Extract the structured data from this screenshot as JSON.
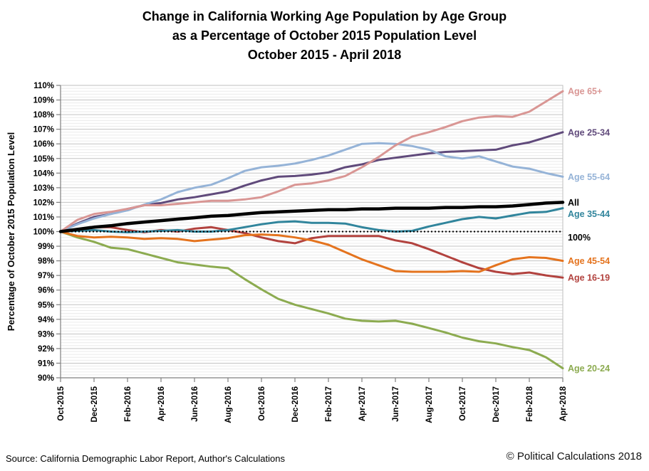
{
  "title": {
    "line1": "Change in California Working Age Population by Age Group",
    "line2": "as a Percentage of October 2015 Population Level",
    "line3": "October 2015 - April 2018"
  },
  "footer": {
    "source": "Source: California Demographic Labor Report, Author's Calculations",
    "copyright": "© Political Calculations 2018"
  },
  "y_axis": {
    "title": "Percentage of October 2015 Population Level",
    "min": 90,
    "max": 110,
    "major_step": 1,
    "minor_step": 0.2,
    "tick_suffix": "%"
  },
  "reference_line": {
    "value": 100,
    "label": "100%",
    "color": "#000000",
    "style": "dotted"
  },
  "colors": {
    "axis": "#7f7f7f",
    "major_grid": "#c3c3c3",
    "minor_grid": "#ebebeb",
    "plot_border": "#bfbfbf"
  },
  "chart_data": {
    "type": "line",
    "title": "Change in California Working Age Population by Age Group as a Percentage of October 2015 Population Level, October 2015 - April 2018",
    "xlabel": "",
    "ylabel": "Percentage of October 2015 Population Level",
    "ylim": [
      90,
      110
    ],
    "grid": "horizontal major+minor",
    "legend_position": "end-of-line labels, right of plot",
    "x": [
      "Oct-2015",
      "Nov-2015",
      "Dec-2015",
      "Jan-2016",
      "Feb-2016",
      "Mar-2016",
      "Apr-2016",
      "May-2016",
      "Jun-2016",
      "Jul-2016",
      "Aug-2016",
      "Sep-2016",
      "Oct-2016",
      "Nov-2016",
      "Dec-2016",
      "Jan-2017",
      "Feb-2017",
      "Mar-2017",
      "Apr-2017",
      "May-2017",
      "Jun-2017",
      "Jul-2017",
      "Aug-2017",
      "Sep-2017",
      "Oct-2017",
      "Nov-2017",
      "Dec-2017",
      "Jan-2018",
      "Feb-2018",
      "Mar-2018",
      "Apr-2018"
    ],
    "x_tick_every": 2,
    "series": [
      {
        "id": "age-16-19",
        "name": "Age 16-19",
        "color": "#b2423e",
        "width": 3,
        "values": [
          100,
          100.15,
          100.3,
          100.3,
          100.1,
          99.95,
          100.1,
          100,
          100.2,
          100.3,
          100.1,
          99.9,
          99.6,
          99.35,
          99.2,
          99.55,
          99.7,
          99.7,
          99.7,
          99.7,
          99.4,
          99.2,
          98.8,
          98.35,
          97.9,
          97.5,
          97.25,
          97.1,
          97.2,
          97,
          96.85
        ]
      },
      {
        "id": "age-20-24",
        "name": "Age 20-24",
        "color": "#8cab50",
        "width": 3,
        "values": [
          100,
          99.6,
          99.3,
          98.9,
          98.8,
          98.5,
          98.2,
          97.9,
          97.75,
          97.6,
          97.5,
          96.75,
          96.05,
          95.4,
          95,
          94.7,
          94.4,
          94.05,
          93.9,
          93.85,
          93.9,
          93.7,
          93.4,
          93.1,
          92.75,
          92.5,
          92.35,
          92.1,
          91.9,
          91.4,
          90.65
        ]
      },
      {
        "id": "age-25-34",
        "name": "Age 25-34",
        "color": "#604a7b",
        "width": 3,
        "values": [
          100,
          100.55,
          101,
          101.2,
          101.55,
          101.8,
          101.95,
          102.2,
          102.35,
          102.55,
          102.75,
          103.15,
          103.5,
          103.75,
          103.8,
          103.9,
          104.05,
          104.4,
          104.6,
          104.9,
          105.05,
          105.2,
          105.35,
          105.45,
          105.5,
          105.55,
          105.6,
          105.9,
          106.1,
          106.45,
          106.8
        ]
      },
      {
        "id": "age-35-44",
        "name": "Age 35-44",
        "color": "#31859c",
        "width": 3,
        "values": [
          100,
          100.05,
          100.1,
          100,
          99.95,
          100,
          100.05,
          100.1,
          100,
          100,
          100.1,
          100.3,
          100.5,
          100.65,
          100.7,
          100.6,
          100.6,
          100.55,
          100.3,
          100.1,
          100,
          100.05,
          100.35,
          100.6,
          100.85,
          101,
          100.9,
          101.1,
          101.3,
          101.35,
          101.6
        ]
      },
      {
        "id": "age-45-54",
        "name": "Age 45-54",
        "color": "#e4731e",
        "width": 3,
        "values": [
          100,
          99.7,
          99.6,
          99.65,
          99.6,
          99.5,
          99.55,
          99.5,
          99.35,
          99.45,
          99.55,
          99.75,
          99.8,
          99.75,
          99.6,
          99.4,
          99.1,
          98.6,
          98.1,
          97.7,
          97.3,
          97.25,
          97.25,
          97.25,
          97.3,
          97.25,
          97.7,
          98.1,
          98.25,
          98.2,
          98
        ]
      },
      {
        "id": "age-55-64",
        "name": "Age 55-64",
        "color": "#95b3d7",
        "width": 3,
        "values": [
          100,
          100.5,
          100.9,
          101.2,
          101.45,
          101.85,
          102.2,
          102.7,
          103,
          103.2,
          103.65,
          104.15,
          104.4,
          104.5,
          104.65,
          104.9,
          105.2,
          105.6,
          106,
          106.05,
          106,
          105.85,
          105.6,
          105.15,
          105,
          105.15,
          104.8,
          104.45,
          104.3,
          104,
          103.75
        ]
      },
      {
        "id": "age-65plus",
        "name": "Age 65+",
        "color": "#d99694",
        "width": 3,
        "values": [
          100,
          100.8,
          101.2,
          101.35,
          101.55,
          101.8,
          101.8,
          101.9,
          102,
          102.1,
          102.1,
          102.2,
          102.35,
          102.75,
          103.2,
          103.3,
          103.5,
          103.8,
          104.4,
          105.1,
          105.9,
          106.5,
          106.8,
          107.15,
          107.55,
          107.8,
          107.9,
          107.85,
          108.2,
          108.9,
          109.6
        ]
      },
      {
        "id": "all",
        "name": "All",
        "color": "#000000",
        "width": 4.5,
        "values": [
          100,
          100.15,
          100.3,
          100.4,
          100.55,
          100.65,
          100.75,
          100.85,
          100.95,
          101.05,
          101.1,
          101.2,
          101.3,
          101.35,
          101.4,
          101.45,
          101.5,
          101.5,
          101.55,
          101.55,
          101.6,
          101.6,
          101.6,
          101.65,
          101.65,
          101.7,
          101.7,
          101.75,
          101.85,
          101.95,
          102
        ]
      }
    ]
  }
}
